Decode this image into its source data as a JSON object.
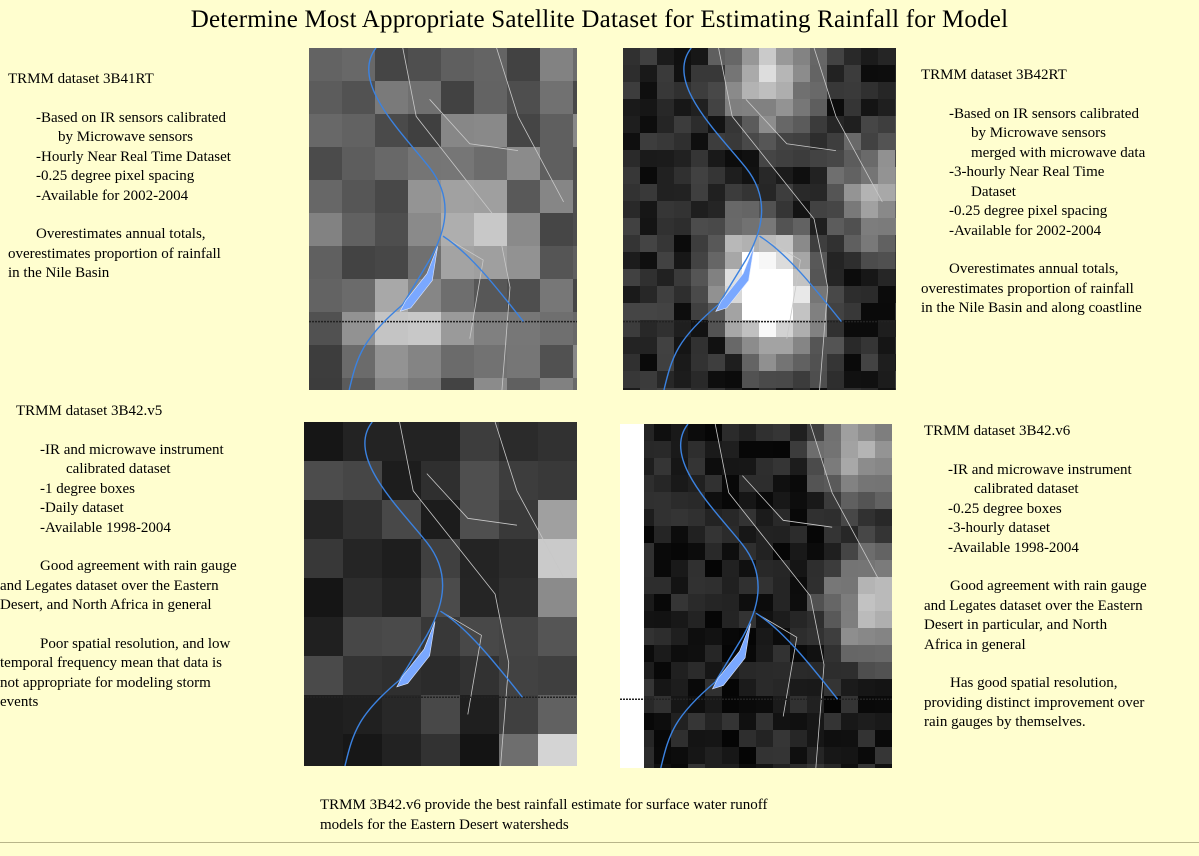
{
  "title": "Determine Most Appropriate Satellite Dataset for Estimating Rainfall for Model",
  "panels": [
    {
      "heading": "TRMM dataset 3B41RT",
      "bullets": [
        "-Based on IR sensors calibrated",
        "by Microwave sensors",
        "-Hourly Near Real Time Dataset",
        "-0.25 degree pixel spacing",
        "-Available for 2002-2004"
      ],
      "summary": [
        "Overestimates annual totals,",
        "overestimates proportion of rainfall",
        "in the Nile Basin"
      ]
    },
    {
      "heading": "TRMM dataset 3B42RT",
      "bullets": [
        "-Based on IR sensors calibrated",
        "by Microwave sensors",
        "merged with microwave data",
        "-3-hourly Near Real Time",
        "Dataset",
        "-0.25 degree pixel spacing",
        "-Available for 2002-2004"
      ],
      "summary": [
        "Overestimates annual totals,",
        "overestimates proportion of rainfall",
        "in the Nile Basin and along coastline"
      ]
    },
    {
      "heading": "TRMM dataset 3B42.v5",
      "bullets": [
        "-IR and microwave instrument",
        "calibrated dataset",
        "-1 degree boxes",
        "-Daily dataset",
        "-Available 1998-2004"
      ],
      "summary": [
        "Good agreement with rain gauge",
        "and Legates dataset over the Eastern",
        "Desert, and North Africa in general"
      ],
      "summary2": [
        "Poor spatial resolution, and low",
        "temporal frequency mean that data is",
        "not appropriate for modeling storm",
        "events"
      ]
    },
    {
      "heading": "TRMM dataset 3B42.v6",
      "bullets": [
        "-IR and microwave instrument",
        "calibrated dataset",
        "-0.25 degree boxes",
        "-3-hourly dataset",
        "-Available 1998-2004"
      ],
      "summary": [
        "Good agreement with rain gauge",
        "and Legates dataset over the Eastern",
        "Desert in particular, and North",
        "Africa in general"
      ],
      "summary2": [
        "Has good spatial resolution,",
        "providing distinct improvement over",
        "rain gauges by themselves."
      ]
    }
  ],
  "conclusion": [
    "TRMM 3B42.v6 provide the best rainfall estimate for surface water runoff",
    "models for the  Eastern Desert watersheds"
  ],
  "colors": {
    "background": "#fffecf",
    "river": "#3b82e0",
    "lake": "#7aa8ff"
  }
}
